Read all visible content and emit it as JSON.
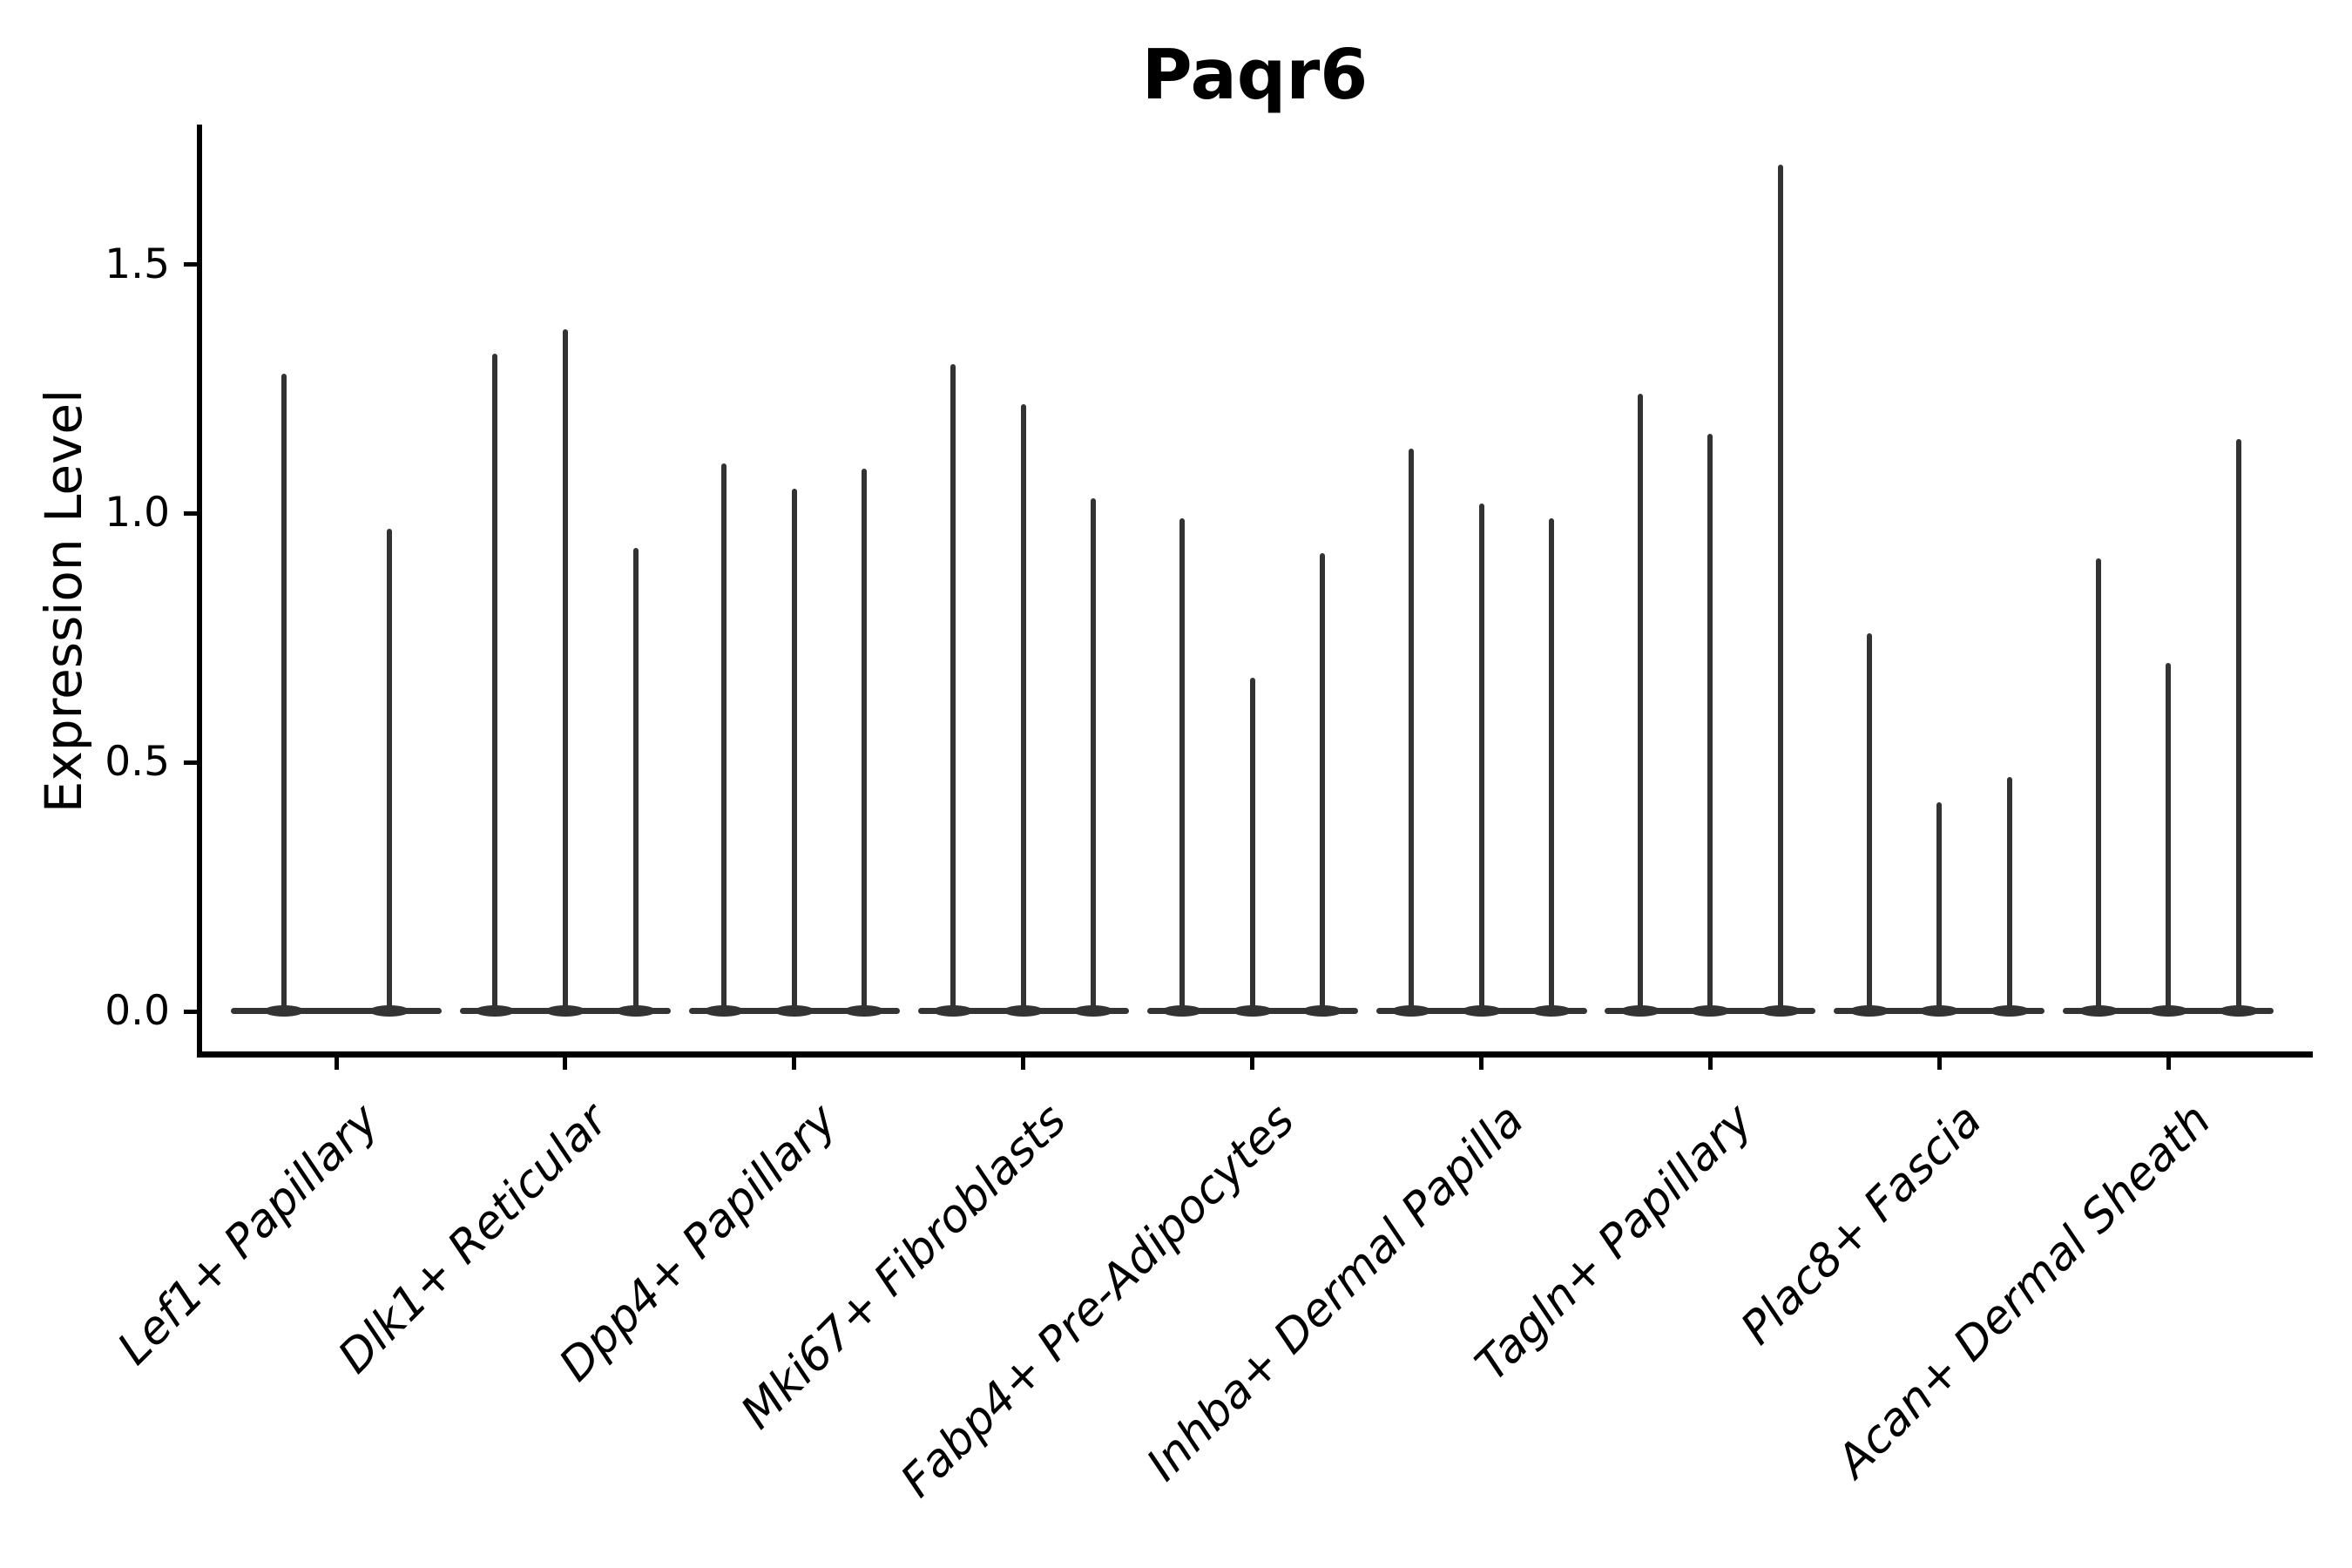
{
  "title": "Paqr6",
  "colors": {
    "violin": "#333333",
    "axis": "#000000",
    "text": "#000000",
    "background": "#ffffff"
  },
  "axes": {
    "y_label": "Expression Level",
    "y_ticks": [
      {
        "label": "0.0",
        "value": 0.0
      },
      {
        "label": "0.5",
        "value": 0.5
      },
      {
        "label": "1.0",
        "value": 1.0
      },
      {
        "label": "1.5",
        "value": 1.5
      }
    ]
  },
  "chart_data": {
    "type": "violin",
    "title": "Paqr6",
    "xlabel": "",
    "ylabel": "Expression Level",
    "ylim": [
      -0.09,
      1.78
    ],
    "yticks": [
      0.0,
      0.5,
      1.0,
      1.5
    ],
    "grid": false,
    "legend_position": "none",
    "description": "Violin plot of Paqr6 expression level per fibroblast cluster; each cluster shows 2-3 very narrow violins (flat base at 0 with thin spikes up to the maximum expression value).",
    "categories": [
      "Lef1+ Papillary",
      "Dlk1+ Reticular",
      "Dpp4+ Papillary",
      "Mki67+ Fibroblasts",
      "Fabp4+ Pre-Adipocytes",
      "Inhba+ Dermal Papilla",
      "Tagln+ Papillary",
      "Plac8+ Fascia",
      "Acan+ Dermal Sheath"
    ],
    "groups": [
      {
        "category": "Lef1+ Papillary",
        "violin_max_expression": [
          1.28,
          0.97
        ]
      },
      {
        "category": "Dlk1+ Reticular",
        "violin_max_expression": [
          1.32,
          1.37,
          0.93
        ]
      },
      {
        "category": "Dpp4+ Papillary",
        "violin_max_expression": [
          1.1,
          1.05,
          1.09
        ]
      },
      {
        "category": "Mki67+ Fibroblasts",
        "violin_max_expression": [
          1.3,
          1.22,
          1.03
        ]
      },
      {
        "category": "Fabp4+ Pre-Adipocytes",
        "violin_max_expression": [
          0.99,
          0.67,
          0.92
        ]
      },
      {
        "category": "Inhba+ Dermal Papilla",
        "violin_max_expression": [
          1.13,
          1.02,
          0.99
        ]
      },
      {
        "category": "Tagln+ Papillary",
        "violin_max_expression": [
          1.24,
          1.16,
          1.7
        ]
      },
      {
        "category": "Plac8+ Fascia",
        "violin_max_expression": [
          0.76,
          0.42,
          0.47
        ]
      },
      {
        "category": "Acan+ Dermal Sheath",
        "violin_max_expression": [
          0.91,
          0.7,
          1.15
        ]
      }
    ]
  }
}
